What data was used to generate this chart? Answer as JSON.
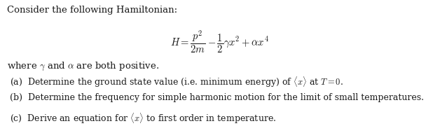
{
  "title_line": "Consider the following Hamiltonian:",
  "where_line": "where $\\gamma$ and $\\alpha$ are both positive.",
  "part_a": "(a)  Determine the ground state value (i.e. minimum energy) of $\\langle x \\rangle$ at $T = 0$.",
  "part_b": "(b)  Determine the frequency for simple harmonic motion for the limit of small temperatures.",
  "part_c": "(c)  Derive an equation for $\\langle x \\rangle$ to first order in temperature.",
  "bg_color": "#ffffff",
  "text_color": "#1a1a1a",
  "font_size_title": 9.5,
  "font_size_eq": 10.5,
  "font_size_body": 9.0,
  "fig_width": 6.28,
  "fig_height": 1.9
}
